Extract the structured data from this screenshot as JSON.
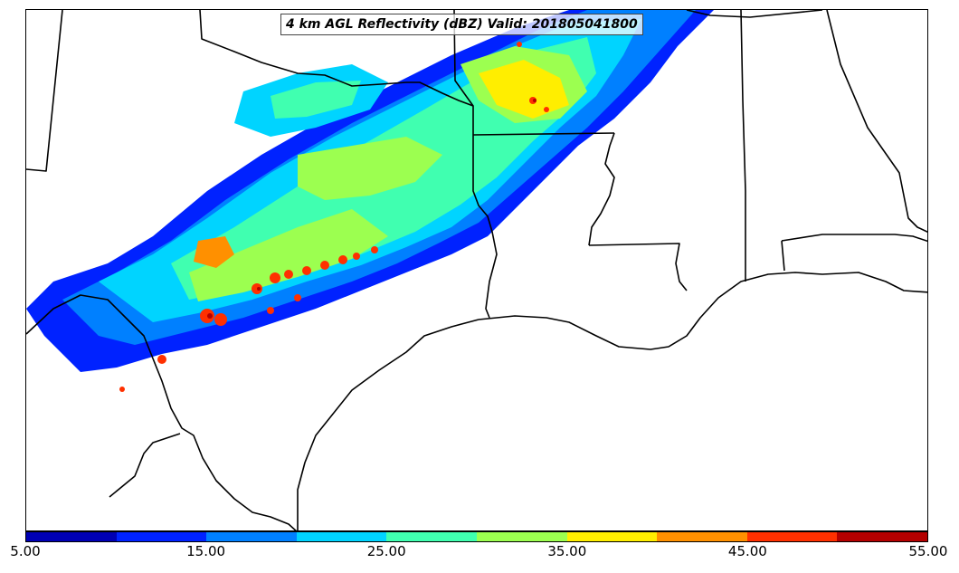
{
  "map": {
    "title": "4 km AGL Reflectivity (dBZ) Valid: 201805041800"
  },
  "colorbar": {
    "min": 5,
    "max": 55,
    "colors": [
      "#0000b4",
      "#0022ff",
      "#0080ff",
      "#00d4ff",
      "#40ffb0",
      "#9cff50",
      "#ffee00",
      "#ff9000",
      "#ff3000",
      "#b40000"
    ],
    "ticks": [
      "5.00",
      "15.00",
      "25.00",
      "35.00",
      "45.00",
      "55.00"
    ]
  }
}
